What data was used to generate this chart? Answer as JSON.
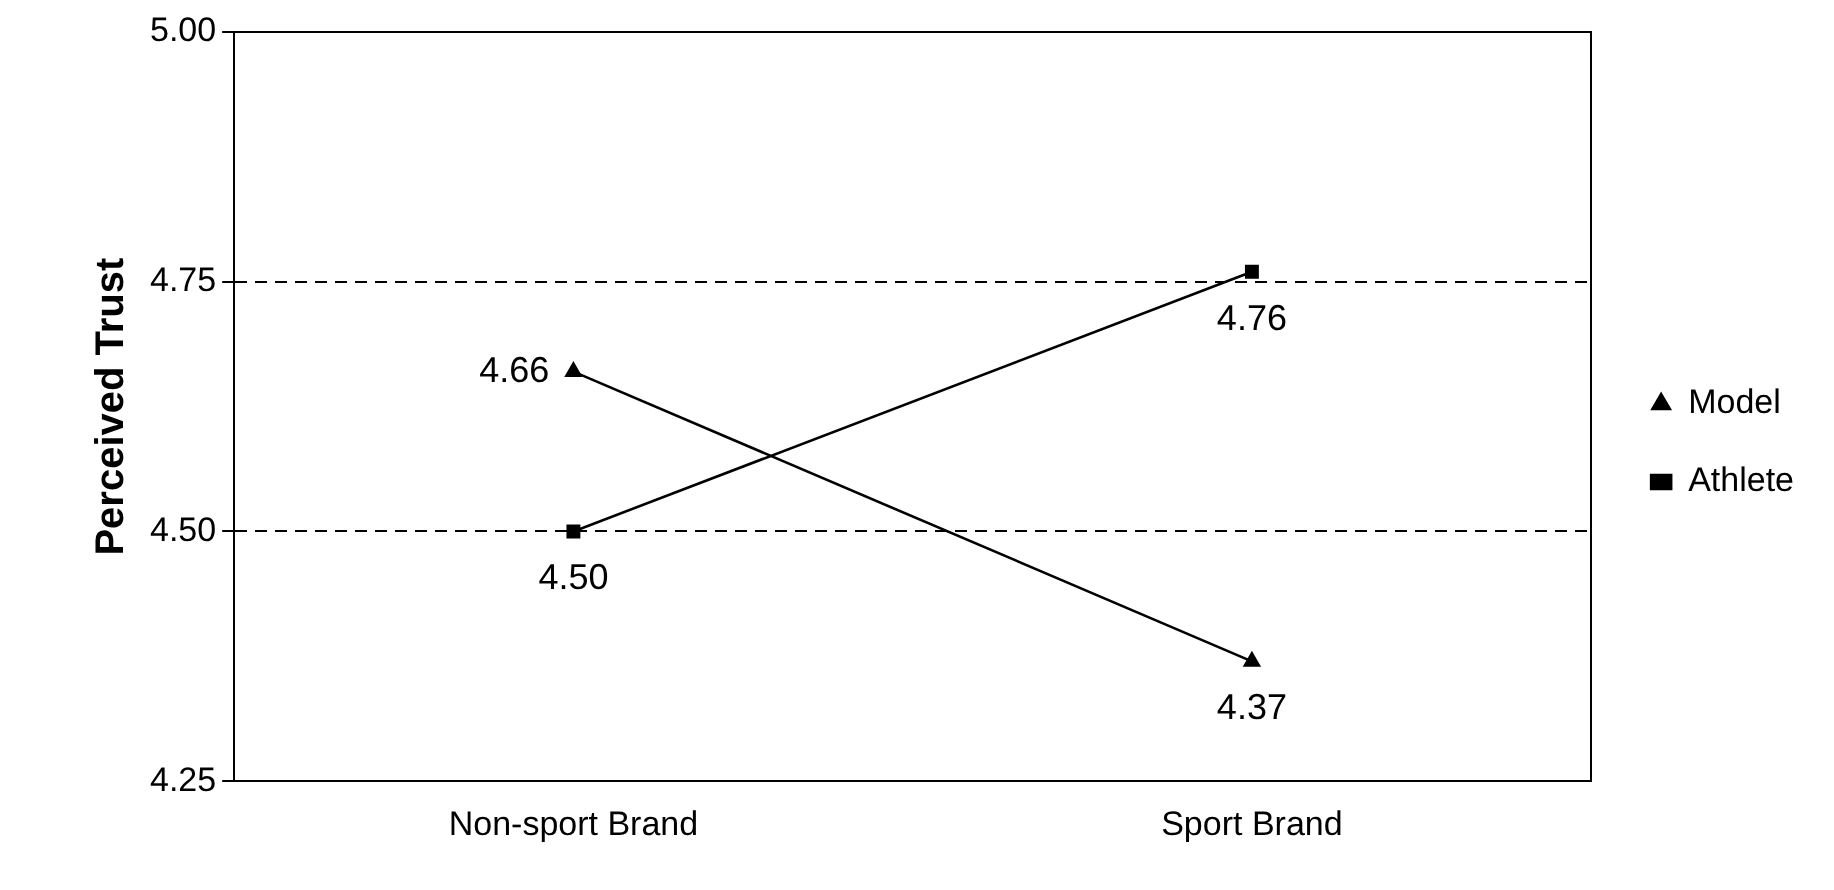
{
  "chart_data": {
    "type": "line",
    "ylabel": "Perceived Trust",
    "categories": [
      "Non-sport Brand",
      "Sport Brand"
    ],
    "series": [
      {
        "name": "Model",
        "color": "#000000",
        "values": [
          4.66,
          4.37
        ],
        "value_labels": [
          "4.66",
          "4.37"
        ],
        "marker": "triangle"
      },
      {
        "name": "Athlete",
        "color": "#000000",
        "values": [
          4.5,
          4.76
        ],
        "value_labels": [
          "4.50",
          "4.76"
        ],
        "marker": "square"
      }
    ],
    "ylim": [
      4.25,
      5
    ],
    "yticks": [
      {
        "value": 4.25,
        "label": "4.25"
      },
      {
        "value": 4.5,
        "label": "4.50"
      },
      {
        "value": 4.75,
        "label": "4.75"
      },
      {
        "value": 5,
        "label": "5.00"
      }
    ],
    "grid": "y",
    "legend": "right",
    "line_style": "solid"
  }
}
